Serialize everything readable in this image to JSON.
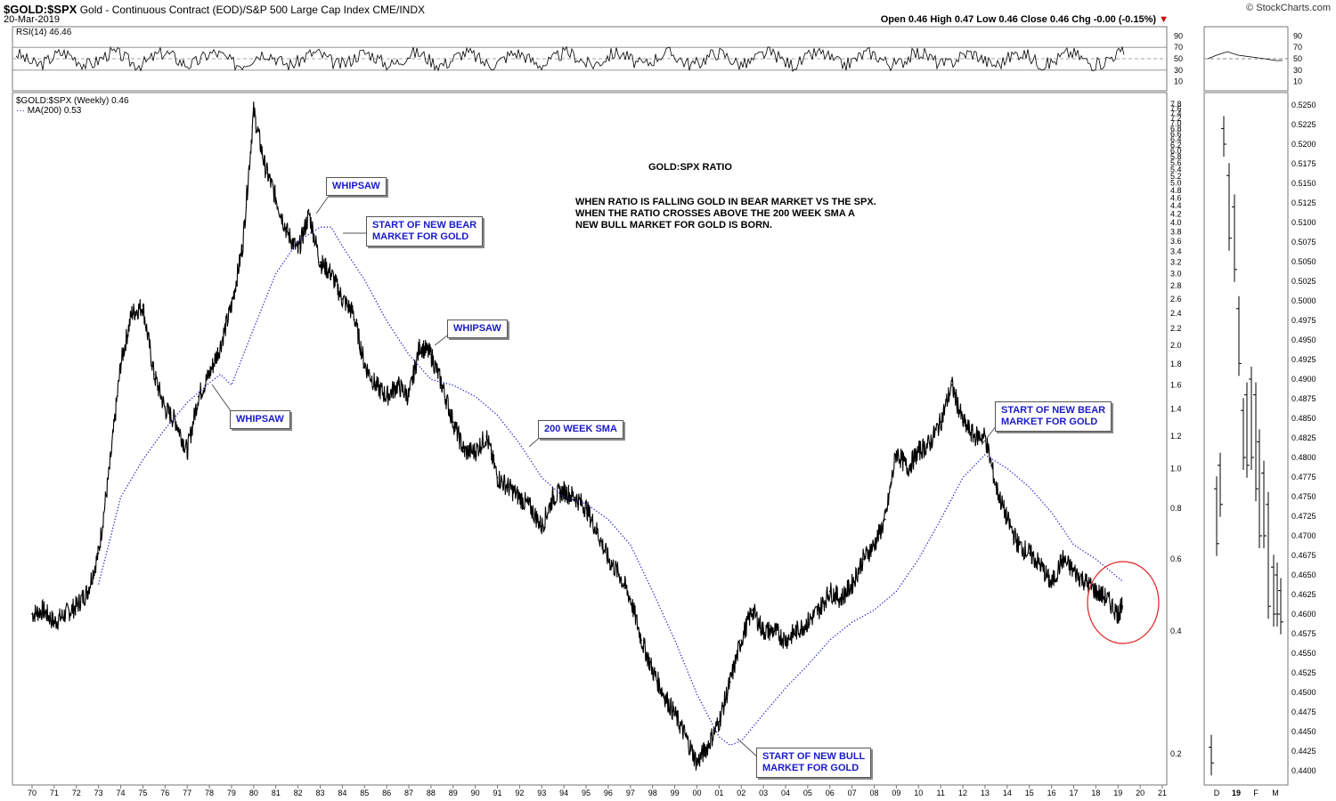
{
  "header": {
    "symbol": "$GOLD:$SPX",
    "description": "Gold - Continuous Contract (EOD)/S&P 500 Large Cap Index  CME/INDX",
    "date": "20-Mar-2019",
    "ohlc": "Open 0.46  High 0.47  Low 0.46  Close 0.46  Chg -0.00 (-0.15%)",
    "brand": "© StockCharts.com"
  },
  "rsi_panel": {
    "label": "RSI(14) 46.46",
    "ticks": [
      "90",
      "70",
      "50",
      "30",
      "10"
    ],
    "levels": [
      70,
      50,
      30
    ]
  },
  "main_panel": {
    "label": "$GOLD:$SPX (Weekly) 0.46",
    "ma_label": "MA(200) 0.53",
    "y_ticks": [
      "7.8",
      "7.6",
      "7.4",
      "7.2",
      "7.0",
      "6.8",
      "6.6",
      "6.4",
      "6.2",
      "6.0",
      "5.8",
      "5.6",
      "5.4",
      "5.2",
      "5.0",
      "4.8",
      "4.6",
      "4.4",
      "4.2",
      "4.0",
      "3.8",
      "3.6",
      "3.4",
      "3.2",
      "3.0",
      "2.8",
      "2.6",
      "2.4",
      "2.2",
      "2.0",
      "1.8",
      "1.6",
      "1.4",
      "1.2",
      "1.0",
      "0.8",
      "0.6",
      "0.4",
      "0.2"
    ],
    "x_ticks": [
      "70",
      "71",
      "72",
      "73",
      "74",
      "75",
      "76",
      "77",
      "78",
      "79",
      "80",
      "81",
      "82",
      "83",
      "84",
      "85",
      "86",
      "87",
      "88",
      "89",
      "90",
      "91",
      "92",
      "93",
      "94",
      "95",
      "96",
      "97",
      "98",
      "99",
      "00",
      "01",
      "02",
      "03",
      "04",
      "05",
      "06",
      "07",
      "08",
      "09",
      "10",
      "11",
      "12",
      "13",
      "14",
      "15",
      "16",
      "17",
      "18",
      "19",
      "20",
      "21"
    ]
  },
  "annotations": {
    "title": "GOLD:SPX RATIO",
    "note_lines": [
      "WHEN RATIO IS FALLING GOLD IN BEAR MARKET VS THE SPX.",
      "WHEN THE RATIO CROSSES ABOVE THE 200 WEEK SMA A",
      "NEW BULL MARKET FOR GOLD IS BORN."
    ],
    "whipsaw_1": "WHIPSAW",
    "whipsaw_2": "WHIPSAW",
    "whipsaw_3": "WHIPSAW",
    "bear_1": [
      "START OF NEW BEAR",
      "MARKET FOR GOLD"
    ],
    "bear_2": [
      "START OF NEW BEAR",
      "MARKET FOR GOLD"
    ],
    "bull_1": [
      "START OF NEW BULL",
      "MARKET FOR GOLD"
    ],
    "sma_label": "200 WEEK SMA"
  },
  "side_panel": {
    "rsi_ticks": [
      "90",
      "70",
      "50",
      "30",
      "10"
    ],
    "y_ticks": [
      "0.5250",
      "0.5225",
      "0.5200",
      "0.5175",
      "0.5150",
      "0.5125",
      "0.5100",
      "0.5075",
      "0.5050",
      "0.5025",
      "0.5000",
      "0.4975",
      "0.4950",
      "0.4925",
      "0.4900",
      "0.4875",
      "0.4850",
      "0.4825",
      "0.4800",
      "0.4775",
      "0.4750",
      "0.4725",
      "0.4700",
      "0.4675",
      "0.4650",
      "0.4625",
      "0.4600",
      "0.4575",
      "0.4550",
      "0.4525",
      "0.4500",
      "0.4475",
      "0.4450",
      "0.4425",
      "0.4400"
    ],
    "x_ticks": [
      "D",
      "19",
      "F",
      "M"
    ]
  },
  "colors": {
    "price": "#000000",
    "ma": "#1a1ac8",
    "annotation_text": "#1a1ac8",
    "highlight_circle": "#e02020"
  },
  "chart_data": {
    "type": "line",
    "scale": "log",
    "title": "",
    "series": [
      {
        "name": "$GOLD:$SPX (Weekly)",
        "x": [
          1970.0,
          1970.5,
          1971.0,
          1971.5,
          1972.0,
          1972.5,
          1973.0,
          1973.5,
          1974.0,
          1974.5,
          1975.0,
          1975.5,
          1976.0,
          1976.5,
          1977.0,
          1977.5,
          1978.0,
          1978.5,
          1979.0,
          1979.5,
          1980.0,
          1980.5,
          1981.0,
          1981.5,
          1982.0,
          1982.5,
          1983.0,
          1983.5,
          1984.0,
          1984.5,
          1985.0,
          1985.5,
          1986.0,
          1986.5,
          1987.0,
          1987.5,
          1988.0,
          1988.5,
          1989.0,
          1989.5,
          1990.0,
          1990.5,
          1991.0,
          1991.5,
          1992.0,
          1992.5,
          1993.0,
          1993.5,
          1994.0,
          1994.5,
          1995.0,
          1995.5,
          1996.0,
          1996.5,
          1997.0,
          1997.5,
          1998.0,
          1998.5,
          1999.0,
          1999.5,
          2000.0,
          2000.5,
          2001.0,
          2001.5,
          2002.0,
          2002.5,
          2003.0,
          2003.5,
          2004.0,
          2004.5,
          2005.0,
          2005.5,
          2006.0,
          2006.5,
          2007.0,
          2007.5,
          2008.0,
          2008.5,
          2009.0,
          2009.5,
          2010.0,
          2010.5,
          2011.0,
          2011.5,
          2012.0,
          2012.5,
          2013.0,
          2013.5,
          2014.0,
          2014.5,
          2015.0,
          2015.5,
          2016.0,
          2016.5,
          2017.0,
          2017.5,
          2018.0,
          2018.5,
          2019.0,
          2019.2
        ],
        "values": [
          0.44,
          0.45,
          0.42,
          0.44,
          0.46,
          0.5,
          0.62,
          1.0,
          1.8,
          2.4,
          2.5,
          1.7,
          1.4,
          1.3,
          1.1,
          1.5,
          1.7,
          2.0,
          2.5,
          3.5,
          7.5,
          5.5,
          4.6,
          3.8,
          3.4,
          4.2,
          3.2,
          3.0,
          2.6,
          2.4,
          1.8,
          1.6,
          1.5,
          1.6,
          1.5,
          2.0,
          1.9,
          1.6,
          1.3,
          1.1,
          1.1,
          1.2,
          0.95,
          0.9,
          0.85,
          0.8,
          0.72,
          0.85,
          0.88,
          0.85,
          0.8,
          0.7,
          0.6,
          0.55,
          0.48,
          0.38,
          0.32,
          0.28,
          0.25,
          0.22,
          0.19,
          0.21,
          0.24,
          0.3,
          0.38,
          0.45,
          0.4,
          0.4,
          0.38,
          0.4,
          0.42,
          0.45,
          0.5,
          0.48,
          0.52,
          0.6,
          0.65,
          0.75,
          1.1,
          1.0,
          1.1,
          1.15,
          1.3,
          1.6,
          1.3,
          1.2,
          1.2,
          0.9,
          0.75,
          0.65,
          0.62,
          0.58,
          0.52,
          0.6,
          0.56,
          0.53,
          0.5,
          0.48,
          0.44,
          0.46
        ]
      },
      {
        "name": "MA(200)",
        "x": [
          1973.0,
          1974.0,
          1975.0,
          1976.0,
          1977.0,
          1978.0,
          1978.5,
          1979.0,
          1980.0,
          1981.0,
          1982.0,
          1983.0,
          1983.5,
          1984.0,
          1985.0,
          1986.0,
          1987.0,
          1988.0,
          1989.0,
          1990.0,
          1991.0,
          1992.0,
          1993.0,
          1994.0,
          1995.0,
          1996.0,
          1997.0,
          1998.0,
          1999.0,
          2000.0,
          2001.0,
          2001.5,
          2002.0,
          2003.0,
          2004.0,
          2005.0,
          2006.0,
          2007.0,
          2008.0,
          2009.0,
          2010.0,
          2011.0,
          2012.0,
          2013.0,
          2014.0,
          2015.0,
          2016.0,
          2017.0,
          2018.0,
          2019.0,
          2019.2
        ],
        "values": [
          0.52,
          0.85,
          1.05,
          1.25,
          1.45,
          1.62,
          1.7,
          1.6,
          2.2,
          3.0,
          3.6,
          3.9,
          3.9,
          3.5,
          2.9,
          2.3,
          1.9,
          1.65,
          1.6,
          1.5,
          1.35,
          1.15,
          0.95,
          0.85,
          0.82,
          0.75,
          0.65,
          0.5,
          0.38,
          0.28,
          0.22,
          0.21,
          0.215,
          0.25,
          0.29,
          0.33,
          0.38,
          0.42,
          0.45,
          0.5,
          0.6,
          0.75,
          0.95,
          1.08,
          1.0,
          0.9,
          0.78,
          0.65,
          0.6,
          0.54,
          0.53
        ]
      }
    ],
    "rsi": {
      "name": "RSI(14)",
      "last": 46.46,
      "ylim": [
        0,
        100
      ]
    },
    "ylim": [
      0.18,
      8.0
    ]
  }
}
